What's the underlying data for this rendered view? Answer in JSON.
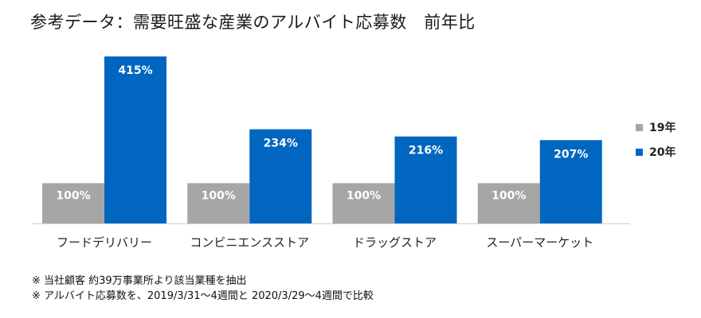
{
  "title": "参考データ：需要旺盛な産業のアルバイト応募数　前年比",
  "chart_data": {
    "type": "bar",
    "categories": [
      "フードデリバリー",
      "コンビニエンスストア",
      "ドラッグストア",
      "スーパーマーケット"
    ],
    "series": [
      {
        "name": "19年",
        "values": [
          100,
          100,
          100,
          100
        ],
        "labels": [
          "100%",
          "100%",
          "100%",
          "100%"
        ],
        "color": "#a6a6a6"
      },
      {
        "name": "20年",
        "values": [
          415,
          234,
          216,
          207
        ],
        "labels": [
          "415%",
          "234%",
          "216%",
          "207%"
        ],
        "color": "#0066c0"
      }
    ],
    "ylim": [
      0,
      415
    ],
    "grid": false,
    "legend": "right"
  },
  "notes": [
    "※ 当社顧客 約39万事業所より該当業種を抽出",
    "※ アルバイト応募数を、2019/3/31～4週間と 2020/3/29～4週間で比較"
  ]
}
